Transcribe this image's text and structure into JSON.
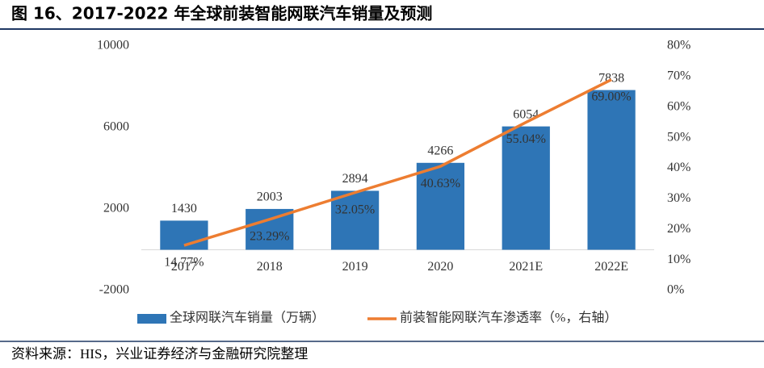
{
  "chart_data": {
    "type": "bar",
    "title": "图 16、2017-2022 年全球前装智能网联汽车销量及预测",
    "source": "资料来源：HIS，兴业证券经济与金融研究院整理",
    "categories": [
      "2017",
      "2018",
      "2019",
      "2020",
      "2021E",
      "2022E"
    ],
    "series": [
      {
        "name": "全球网联汽车销量（万辆）",
        "type": "bar",
        "color": "#2e75b6",
        "values": [
          1430,
          2003,
          2894,
          4266,
          6054,
          7838
        ]
      },
      {
        "name": "前装智能网联汽车渗透率（%，右轴）",
        "type": "line",
        "axis": "y2",
        "color": "#ed7d31",
        "values": [
          14.77,
          23.29,
          32.05,
          40.63,
          55.04,
          69.0
        ],
        "value_labels": [
          "14.77%",
          "23.29%",
          "32.05%",
          "40.63%",
          "55.04%",
          "69.00%"
        ]
      }
    ],
    "ylim": [
      -2000,
      10000
    ],
    "yticks": [
      -2000,
      2000,
      6000,
      10000
    ],
    "y2lim": [
      0,
      80
    ],
    "y2ticks": [
      {
        "value": 0,
        "label": "0%"
      },
      {
        "value": 10,
        "label": "10%"
      },
      {
        "value": 20,
        "label": "20%"
      },
      {
        "value": 30,
        "label": "30%"
      },
      {
        "value": 40,
        "label": "40%"
      },
      {
        "value": 50,
        "label": "50%"
      },
      {
        "value": 60,
        "label": "60%"
      },
      {
        "value": 70,
        "label": "70%"
      },
      {
        "value": 80,
        "label": "80%"
      }
    ],
    "grid": false
  }
}
